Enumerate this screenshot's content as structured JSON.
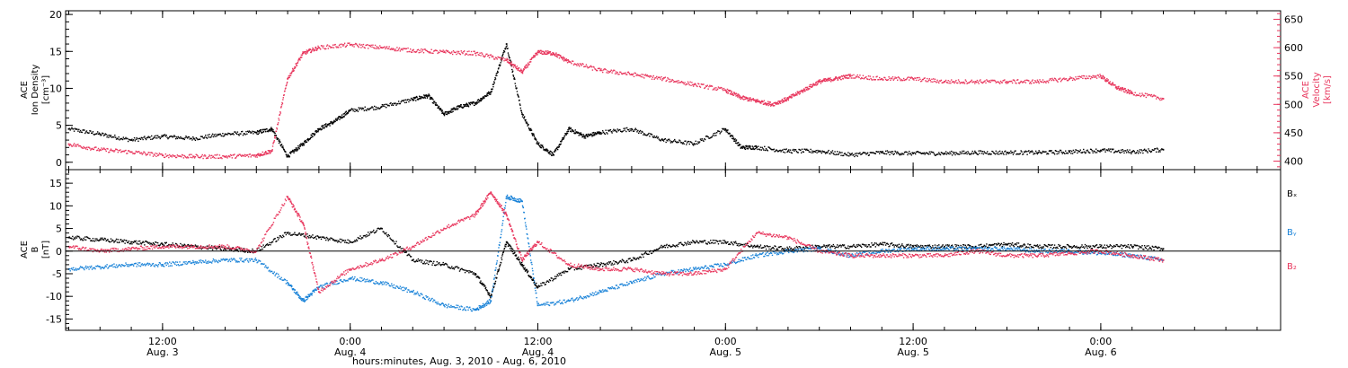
{
  "colors": {
    "black": "#000000",
    "pink": "#e8365d",
    "blue": "#1a83d8"
  },
  "xlabel": "hours:minutes, Aug.  3, 2010 - Aug.  6, 2010",
  "x_ticks": [
    {
      "time": "12:00",
      "date": "Aug. 3",
      "hour": 12
    },
    {
      "time": "0:00",
      "date": "Aug. 4",
      "hour": 24
    },
    {
      "time": "12:00",
      "date": "Aug. 4",
      "hour": 36
    },
    {
      "time": "0:00",
      "date": "Aug. 5",
      "hour": 48
    },
    {
      "time": "12:00",
      "date": "Aug. 5",
      "hour": 60
    },
    {
      "time": "0:00",
      "date": "Aug. 6",
      "hour": 72
    }
  ],
  "chart_data": [
    {
      "type": "scatter",
      "panel": "density-velocity",
      "xlim_hours": [
        5.8,
        83.5
      ],
      "left_axis": {
        "title_lines": [
          "ACE",
          "Ion Density",
          "[cm⁻³]"
        ],
        "ylim": [
          -1,
          20.5
        ],
        "ticks": [
          0,
          5,
          10,
          15,
          20
        ],
        "tick_labels": [
          "0",
          "5",
          "10",
          "15",
          "20"
        ]
      },
      "right_axis": {
        "title_lines": [
          "ACE",
          "Velocity",
          "[km/s]"
        ],
        "ylim": [
          385,
          665
        ],
        "ticks": [
          400,
          450,
          500,
          550,
          600,
          650
        ],
        "tick_labels": [
          "400",
          "450",
          "500",
          "550",
          "600",
          "650"
        ]
      },
      "series": [
        {
          "color": "black",
          "axis": "left",
          "points": [
            [
              6,
              4.5
            ],
            [
              8,
              3.8
            ],
            [
              10,
              3.0
            ],
            [
              12,
              3.5
            ],
            [
              14,
              3.2
            ],
            [
              16,
              3.8
            ],
            [
              18,
              4.0
            ],
            [
              19,
              4.5
            ],
            [
              20,
              0.8
            ],
            [
              21,
              2.5
            ],
            [
              22,
              4.5
            ],
            [
              23,
              5.5
            ],
            [
              24,
              7
            ],
            [
              26,
              7.5
            ],
            [
              28,
              8.5
            ],
            [
              29,
              9
            ],
            [
              30,
              6.5
            ],
            [
              31,
              7.5
            ],
            [
              32,
              8
            ],
            [
              33,
              9.5
            ],
            [
              34,
              16
            ],
            [
              35,
              6.5
            ],
            [
              36,
              2.5
            ],
            [
              37,
              1
            ],
            [
              38,
              4.5
            ],
            [
              39,
              3.5
            ],
            [
              40,
              4
            ],
            [
              42,
              4.5
            ],
            [
              44,
              3
            ],
            [
              46,
              2.5
            ],
            [
              48,
              4.5
            ],
            [
              49,
              2
            ],
            [
              50,
              2
            ],
            [
              52,
              1.5
            ],
            [
              54,
              1.5
            ],
            [
              56,
              1
            ],
            [
              58,
              1.3
            ],
            [
              60,
              1.2
            ],
            [
              62,
              1.2
            ],
            [
              64,
              1.3
            ],
            [
              66,
              1.3
            ],
            [
              68,
              1.3
            ],
            [
              70,
              1.4
            ],
            [
              72,
              1.6
            ],
            [
              74,
              1.4
            ],
            [
              76,
              1.7
            ]
          ]
        },
        {
          "color": "pink",
          "axis": "right",
          "points": [
            [
              6,
              430
            ],
            [
              8,
              420
            ],
            [
              10,
              416
            ],
            [
              12,
              410
            ],
            [
              14,
              408
            ],
            [
              16,
              408
            ],
            [
              18,
              410
            ],
            [
              19,
              418
            ],
            [
              20,
              545
            ],
            [
              21,
              590
            ],
            [
              22,
              600
            ],
            [
              24,
              605
            ],
            [
              26,
              600
            ],
            [
              28,
              595
            ],
            [
              30,
              592
            ],
            [
              32,
              590
            ],
            [
              34,
              578
            ],
            [
              35,
              557
            ],
            [
              36,
              592
            ],
            [
              37,
              590
            ],
            [
              38,
              575
            ],
            [
              40,
              560
            ],
            [
              42,
              553
            ],
            [
              44,
              545
            ],
            [
              46,
              535
            ],
            [
              48,
              525
            ],
            [
              49,
              512
            ],
            [
              50,
              506
            ],
            [
              51,
              500
            ],
            [
              52,
              510
            ],
            [
              53,
              525
            ],
            [
              54,
              540
            ],
            [
              55,
              545
            ],
            [
              56,
              550
            ],
            [
              58,
              545
            ],
            [
              60,
              545
            ],
            [
              62,
              540
            ],
            [
              64,
              540
            ],
            [
              66,
              540
            ],
            [
              68,
              540
            ],
            [
              70,
              545
            ],
            [
              72,
              550
            ],
            [
              73,
              530
            ],
            [
              74,
              520
            ],
            [
              76,
              510
            ]
          ]
        }
      ]
    },
    {
      "type": "scatter",
      "panel": "magnetic-field",
      "xlim_hours": [
        5.8,
        83.5
      ],
      "left_axis": {
        "title_lines": [
          "ACE",
          "B",
          "[nT]"
        ],
        "ylim": [
          -17.5,
          18
        ],
        "ticks": [
          -15,
          -10,
          -5,
          0,
          5,
          10,
          15
        ],
        "tick_labels": [
          "-15",
          "-10",
          "-5",
          "0",
          "5",
          "10",
          "15"
        ]
      },
      "zero_line": 0,
      "series": [
        {
          "name": "Bx",
          "color": "black",
          "points": [
            [
              6,
              3
            ],
            [
              8,
              2.5
            ],
            [
              10,
              2
            ],
            [
              12,
              1.5
            ],
            [
              14,
              1
            ],
            [
              16,
              0.5
            ],
            [
              18,
              0
            ],
            [
              20,
              4
            ],
            [
              22,
              3
            ],
            [
              24,
              2
            ],
            [
              26,
              5
            ],
            [
              28,
              -2
            ],
            [
              30,
              -3
            ],
            [
              32,
              -5
            ],
            [
              33,
              -10
            ],
            [
              34,
              2
            ],
            [
              35,
              -3
            ],
            [
              36,
              -8
            ],
            [
              38,
              -4
            ],
            [
              40,
              -3
            ],
            [
              42,
              -2
            ],
            [
              44,
              1
            ],
            [
              46,
              2
            ],
            [
              48,
              2
            ],
            [
              50,
              1
            ],
            [
              52,
              0.5
            ],
            [
              54,
              1
            ],
            [
              56,
              1
            ],
            [
              58,
              1.5
            ],
            [
              60,
              1
            ],
            [
              62,
              1
            ],
            [
              64,
              1
            ],
            [
              66,
              1.5
            ],
            [
              68,
              1
            ],
            [
              70,
              1
            ],
            [
              72,
              1
            ],
            [
              74,
              1
            ],
            [
              76,
              0.5
            ]
          ]
        },
        {
          "name": "By",
          "color": "blue",
          "points": [
            [
              6,
              -4
            ],
            [
              8,
              -3.5
            ],
            [
              10,
              -3
            ],
            [
              12,
              -3
            ],
            [
              14,
              -2.5
            ],
            [
              16,
              -2
            ],
            [
              18,
              -2
            ],
            [
              20,
              -7
            ],
            [
              21,
              -11
            ],
            [
              22,
              -8
            ],
            [
              24,
              -6
            ],
            [
              26,
              -7
            ],
            [
              28,
              -9
            ],
            [
              30,
              -12
            ],
            [
              32,
              -13
            ],
            [
              33,
              -11
            ],
            [
              34,
              12
            ],
            [
              35,
              11
            ],
            [
              36,
              -12
            ],
            [
              38,
              -11
            ],
            [
              40,
              -9
            ],
            [
              42,
              -7
            ],
            [
              44,
              -5
            ],
            [
              46,
              -4
            ],
            [
              48,
              -3
            ],
            [
              50,
              -1
            ],
            [
              52,
              0
            ],
            [
              54,
              0.5
            ],
            [
              56,
              -1
            ],
            [
              58,
              0
            ],
            [
              60,
              0.5
            ],
            [
              62,
              0.5
            ],
            [
              64,
              0.5
            ],
            [
              66,
              0.5
            ],
            [
              68,
              0
            ],
            [
              70,
              0
            ],
            [
              72,
              -0.5
            ],
            [
              74,
              -1
            ],
            [
              76,
              -2
            ]
          ]
        },
        {
          "name": "Bz",
          "color": "pink",
          "points": [
            [
              6,
              1
            ],
            [
              8,
              0
            ],
            [
              10,
              0.5
            ],
            [
              12,
              1
            ],
            [
              14,
              1
            ],
            [
              16,
              1
            ],
            [
              18,
              0
            ],
            [
              20,
              12
            ],
            [
              21,
              6
            ],
            [
              22,
              -9
            ],
            [
              24,
              -4
            ],
            [
              26,
              -2
            ],
            [
              28,
              1
            ],
            [
              30,
              5
            ],
            [
              32,
              8
            ],
            [
              33,
              13
            ],
            [
              34,
              8
            ],
            [
              35,
              -2
            ],
            [
              36,
              2
            ],
            [
              38,
              -3
            ],
            [
              40,
              -4
            ],
            [
              42,
              -4
            ],
            [
              44,
              -5
            ],
            [
              46,
              -5
            ],
            [
              48,
              -4
            ],
            [
              50,
              4
            ],
            [
              52,
              3
            ],
            [
              54,
              0
            ],
            [
              56,
              -1
            ],
            [
              58,
              -1
            ],
            [
              60,
              -1
            ],
            [
              62,
              -1
            ],
            [
              64,
              0
            ],
            [
              66,
              -1
            ],
            [
              68,
              -1
            ],
            [
              70,
              -0.5
            ],
            [
              72,
              0
            ],
            [
              74,
              -1
            ],
            [
              76,
              -2
            ]
          ]
        }
      ],
      "legend": [
        "Bₓ",
        "Bᵧ",
        "B₂"
      ]
    }
  ]
}
